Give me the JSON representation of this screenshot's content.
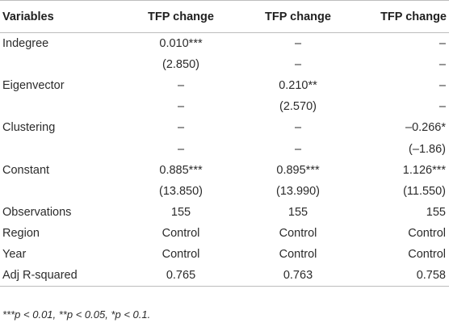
{
  "table": {
    "headers": [
      "Variables",
      "TFP change",
      "TFP change",
      "TFP change"
    ],
    "rows": [
      [
        "Indegree",
        "0.010***",
        "–",
        "–"
      ],
      [
        "",
        "(2.850)",
        "–",
        "–"
      ],
      [
        "Eigenvector",
        "–",
        "0.210**",
        "–"
      ],
      [
        "",
        "–",
        "(2.570)",
        "–"
      ],
      [
        "Clustering",
        "–",
        "–",
        "–0.266*"
      ],
      [
        "",
        "–",
        "–",
        "(–1.86)"
      ],
      [
        "Constant",
        "0.885***",
        "0.895***",
        "1.126***"
      ],
      [
        "",
        "(13.850)",
        "(13.990)",
        "(11.550)"
      ],
      [
        "Observations",
        "155",
        "155",
        "155"
      ],
      [
        "Region",
        "Control",
        "Control",
        "Control"
      ],
      [
        "Year",
        "Control",
        "Control",
        "Control"
      ],
      [
        "Adj R-squared",
        "0.765",
        "0.763",
        "0.758"
      ]
    ]
  },
  "footnote": "***p < 0.01, **p < 0.05, *p < 0.1."
}
